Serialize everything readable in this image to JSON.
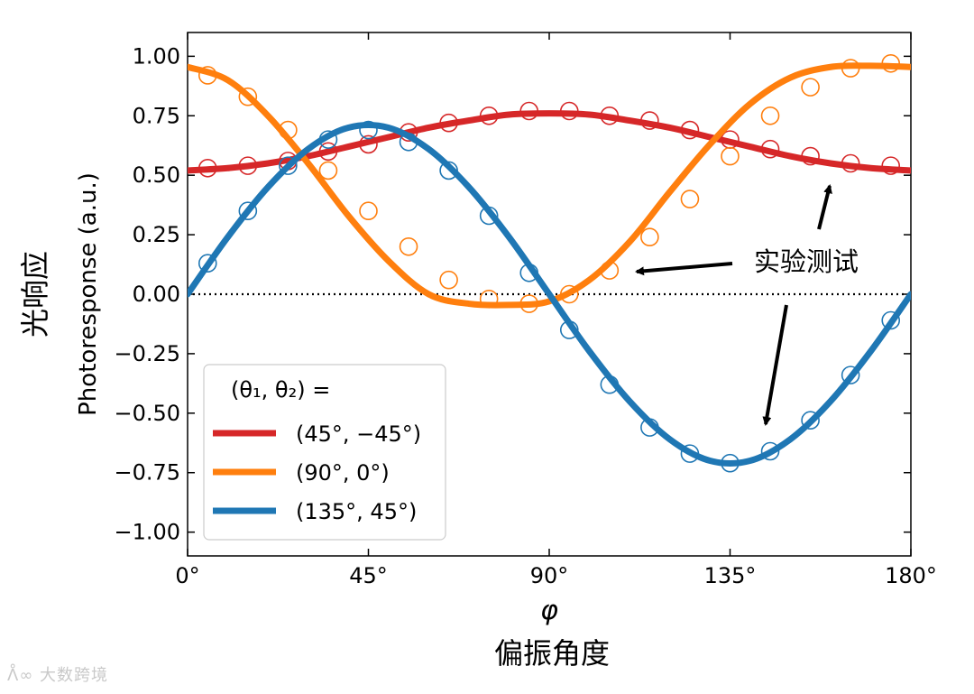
{
  "chart_data": {
    "type": "line",
    "title": "",
    "xlabel": "φ",
    "xlabel_secondary": "偏振角度",
    "ylabel": "Photoresponse (a.u.)",
    "ylabel_secondary": "光响应",
    "xlim": [
      0,
      180
    ],
    "ylim": [
      -1.1,
      1.1
    ],
    "x_ticks": [
      0,
      45,
      90,
      135,
      180
    ],
    "x_tick_labels": [
      "0°",
      "45°",
      "90°",
      "135°",
      "180°"
    ],
    "y_ticks": [
      1.0,
      0.75,
      0.5,
      0.25,
      0.0,
      -0.25,
      -0.5,
      -0.75,
      -1.0
    ],
    "y_tick_labels": [
      "1.00",
      "0.75",
      "0.50",
      "0.25",
      "0.00",
      "−0.25",
      "−0.50",
      "−0.75",
      "−1.00"
    ],
    "zero_line": "dotted",
    "legend_title": "(θ₁, θ₂) =",
    "legend_position": "lower-left",
    "annotation": "实验测试",
    "watermark": "大数跨境",
    "series": [
      {
        "name": "(45°, −45°)",
        "color": "#d62728",
        "fit_x": [
          0,
          10,
          20,
          30,
          40,
          50,
          60,
          70,
          80,
          90,
          100,
          110,
          120,
          130,
          140,
          150,
          160,
          170,
          180
        ],
        "fit_y": [
          0.52,
          0.53,
          0.55,
          0.58,
          0.62,
          0.66,
          0.7,
          0.73,
          0.755,
          0.76,
          0.755,
          0.73,
          0.7,
          0.66,
          0.62,
          0.58,
          0.55,
          0.53,
          0.52
        ],
        "points_x": [
          5,
          15,
          25,
          35,
          45,
          55,
          65,
          75,
          85,
          95,
          105,
          115,
          125,
          135,
          145,
          155,
          165,
          175
        ],
        "points_y": [
          0.53,
          0.54,
          0.56,
          0.6,
          0.63,
          0.68,
          0.72,
          0.75,
          0.77,
          0.77,
          0.75,
          0.73,
          0.69,
          0.65,
          0.61,
          0.58,
          0.55,
          0.54
        ]
      },
      {
        "name": "(90°, 0°)",
        "color": "#ff7f0e",
        "fit_x": [
          0,
          10,
          20,
          30,
          40,
          50,
          60,
          70,
          80,
          90,
          100,
          110,
          120,
          130,
          140,
          150,
          160,
          170,
          180
        ],
        "fit_y": [
          0.955,
          0.9,
          0.75,
          0.55,
          0.33,
          0.14,
          0.0,
          -0.04,
          -0.045,
          -0.03,
          0.06,
          0.22,
          0.43,
          0.63,
          0.8,
          0.91,
          0.955,
          0.96,
          0.955
        ],
        "points_x": [
          5,
          15,
          25,
          35,
          45,
          55,
          65,
          75,
          85,
          95,
          105,
          115,
          125,
          135,
          145,
          155,
          165,
          175
        ],
        "points_y": [
          0.92,
          0.83,
          0.69,
          0.52,
          0.35,
          0.2,
          0.06,
          -0.02,
          -0.04,
          0.0,
          0.1,
          0.24,
          0.4,
          0.58,
          0.75,
          0.87,
          0.95,
          0.97
        ]
      },
      {
        "name": "(135°, 45°)",
        "color": "#1f77b4",
        "fit_x": [
          0,
          10,
          20,
          30,
          40,
          50,
          60,
          70,
          80,
          90,
          100,
          110,
          120,
          130,
          140,
          150,
          160,
          170,
          180
        ],
        "fit_y": [
          0.0,
          0.24,
          0.45,
          0.61,
          0.7,
          0.7,
          0.61,
          0.45,
          0.24,
          0.0,
          -0.24,
          -0.45,
          -0.61,
          -0.7,
          -0.7,
          -0.61,
          -0.45,
          -0.24,
          0.0
        ],
        "points_x": [
          5,
          15,
          25,
          35,
          45,
          55,
          65,
          75,
          85,
          95,
          105,
          115,
          125,
          135,
          145,
          155,
          165,
          175
        ],
        "points_y": [
          0.13,
          0.35,
          0.54,
          0.65,
          0.69,
          0.64,
          0.52,
          0.33,
          0.09,
          -0.15,
          -0.38,
          -0.56,
          -0.67,
          -0.71,
          -0.66,
          -0.53,
          -0.34,
          -0.11
        ]
      }
    ]
  }
}
